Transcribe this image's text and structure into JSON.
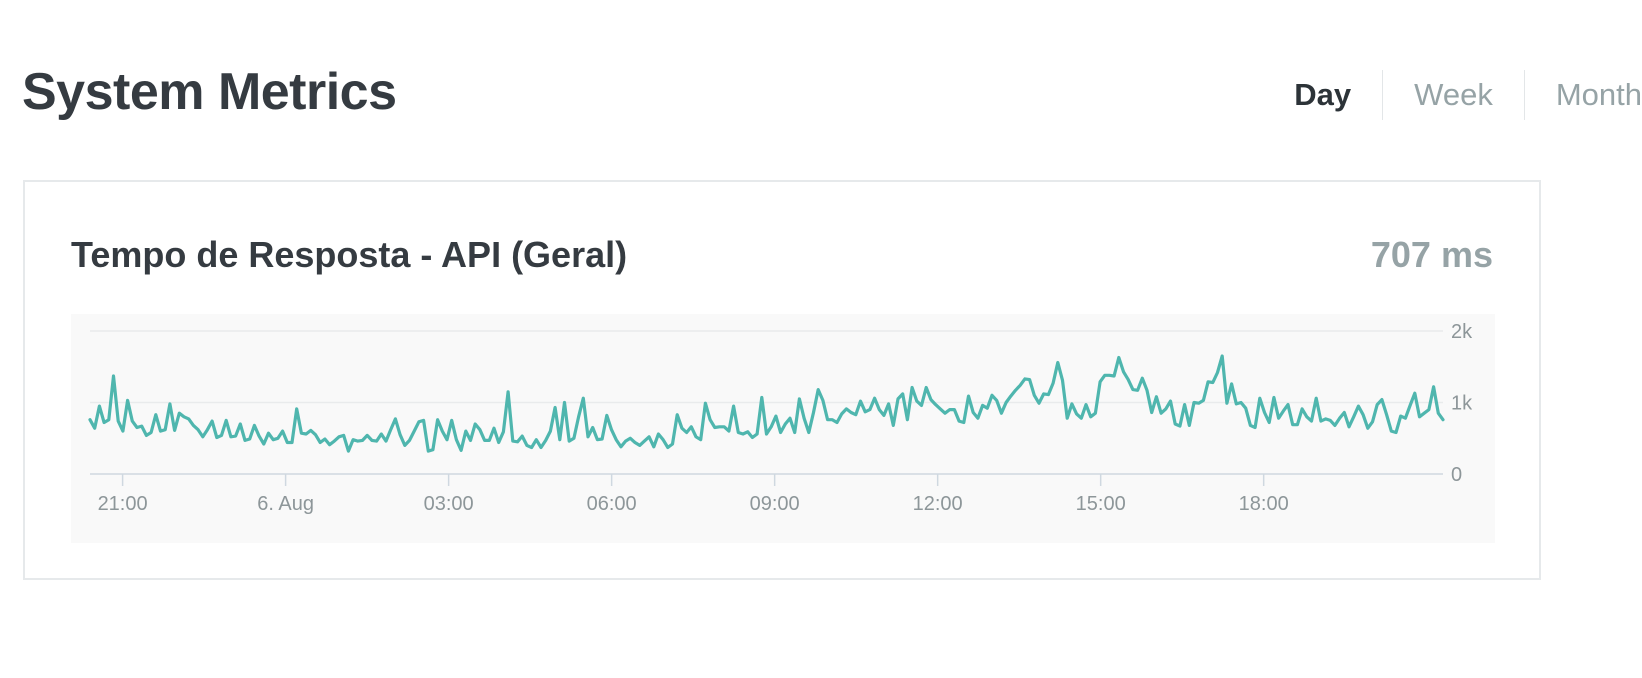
{
  "page": {
    "title": "System Metrics"
  },
  "tabs": [
    {
      "label": "Day",
      "active": true
    },
    {
      "label": "Week",
      "active": false
    },
    {
      "label": "Month",
      "active": false
    }
  ],
  "card": {
    "title": "Tempo de Resposta - API (Geral)",
    "value": "707 ms"
  },
  "colors": {
    "line": "#4fb6ae",
    "grid": "#e9ebec",
    "axis": "#cfd8e0"
  },
  "chart_data": {
    "type": "line",
    "title": "",
    "xlabel": "",
    "ylabel": "",
    "ylim": [
      0,
      2000
    ],
    "y_ticks": [
      {
        "value": 0,
        "label": "0"
      },
      {
        "value": 1000,
        "label": "1k"
      },
      {
        "value": 2000,
        "label": "2k"
      }
    ],
    "x_range_hours": [
      -3.6,
      21.3
    ],
    "x_ticks": [
      {
        "hour": -3,
        "label": "21:00"
      },
      {
        "hour": 0,
        "label": "6. Aug"
      },
      {
        "hour": 3,
        "label": "03:00"
      },
      {
        "hour": 6,
        "label": "06:00"
      },
      {
        "hour": 9,
        "label": "09:00"
      },
      {
        "hour": 12,
        "label": "12:00"
      },
      {
        "hour": 15,
        "label": "15:00"
      },
      {
        "hour": 18,
        "label": "18:00"
      }
    ],
    "series": [
      {
        "values": [
          760,
          640,
          950,
          720,
          760,
          1370,
          740,
          600,
          1030,
          740,
          650,
          670,
          540,
          580,
          830,
          600,
          620,
          980,
          610,
          850,
          800,
          770,
          680,
          620,
          520,
          620,
          740,
          510,
          540,
          750,
          520,
          530,
          700,
          470,
          490,
          680,
          530,
          420,
          570,
          480,
          500,
          600,
          440,
          440,
          910,
          570,
          560,
          610,
          550,
          440,
          490,
          410,
          460,
          520,
          540,
          320,
          480,
          460,
          470,
          540,
          470,
          460,
          560,
          460,
          620,
          770,
          550,
          400,
          470,
          600,
          730,
          750,
          320,
          340,
          760,
          600,
          480,
          750,
          480,
          330,
          600,
          470,
          700,
          620,
          470,
          470,
          640,
          440,
          590,
          1150,
          460,
          450,
          530,
          400,
          370,
          480,
          370,
          470,
          600,
          930,
          480,
          1000,
          460,
          500,
          800,
          1060,
          520,
          650,
          480,
          490,
          820,
          620,
          480,
          380,
          460,
          500,
          440,
          400,
          460,
          520,
          380,
          560,
          480,
          370,
          420,
          830,
          640,
          580,
          660,
          520,
          480,
          990,
          760,
          650,
          660,
          660,
          600,
          950,
          580,
          560,
          590,
          510,
          560,
          1070,
          560,
          660,
          810,
          580,
          700,
          780,
          580,
          1050,
          780,
          580,
          860,
          1180,
          1030,
          760,
          760,
          720,
          840,
          910,
          860,
          830,
          1020,
          870,
          900,
          1060,
          900,
          820,
          980,
          680,
          1050,
          1120,
          760,
          1210,
          1020,
          960,
          1210,
          1040,
          970,
          910,
          850,
          900,
          900,
          740,
          720,
          1090,
          860,
          780,
          960,
          920,
          1100,
          1030,
          850,
          1000,
          1090,
          1170,
          1240,
          1330,
          1320,
          1100,
          990,
          1120,
          1110,
          1270,
          1560,
          1310,
          780,
          980,
          840,
          780,
          970,
          800,
          850,
          1290,
          1380,
          1380,
          1370,
          1630,
          1430,
          1320,
          1180,
          1170,
          1340,
          1170,
          860,
          1080,
          850,
          910,
          1020,
          700,
          670,
          970,
          680,
          1000,
          990,
          1030,
          1290,
          1280,
          1420,
          1650,
          990,
          1260,
          980,
          1000,
          920,
          680,
          650,
          1060,
          860,
          720,
          1070,
          780,
          880,
          970,
          690,
          690,
          910,
          800,
          740,
          1060,
          740,
          770,
          750,
          680,
          780,
          860,
          660,
          800,
          950,
          830,
          640,
          730,
          970,
          1040,
          830,
          600,
          580,
          810,
          780,
          960,
          1130,
          800,
          850,
          900,
          1220,
          850,
          760
        ]
      }
    ]
  }
}
